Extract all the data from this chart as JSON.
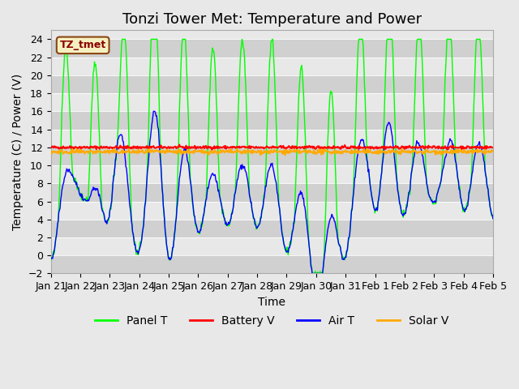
{
  "title": "Tonzi Tower Met: Temperature and Power",
  "ylabel": "Temperature (C) / Power (V)",
  "xlabel": "Time",
  "tag_label": "TZ_tmet",
  "ylim": [
    -2,
    25
  ],
  "yticks": [
    -2,
    0,
    2,
    4,
    6,
    8,
    10,
    12,
    14,
    16,
    18,
    20,
    22,
    24
  ],
  "xtick_labels": [
    "Jan 21",
    "Jan 22",
    "Jan 23",
    "Jan 24",
    "Jan 25",
    "Jan 26",
    "Jan 27",
    "Jan 28",
    "Jan 29",
    "Jan 30",
    "Jan 31",
    "Feb 1",
    "Feb 2",
    "Feb 3",
    "Feb 4",
    "Feb 5"
  ],
  "legend_entries": [
    "Panel T",
    "Battery V",
    "Air T",
    "Solar V"
  ],
  "legend_colors": [
    "#00ff00",
    "#ff0000",
    "#0000ff",
    "#ffaa00"
  ],
  "background_color": "#e8e8e8",
  "stripe_color": "#d0d0d0",
  "title_fontsize": 13,
  "axis_fontsize": 10,
  "tick_fontsize": 9,
  "n_days": 15
}
